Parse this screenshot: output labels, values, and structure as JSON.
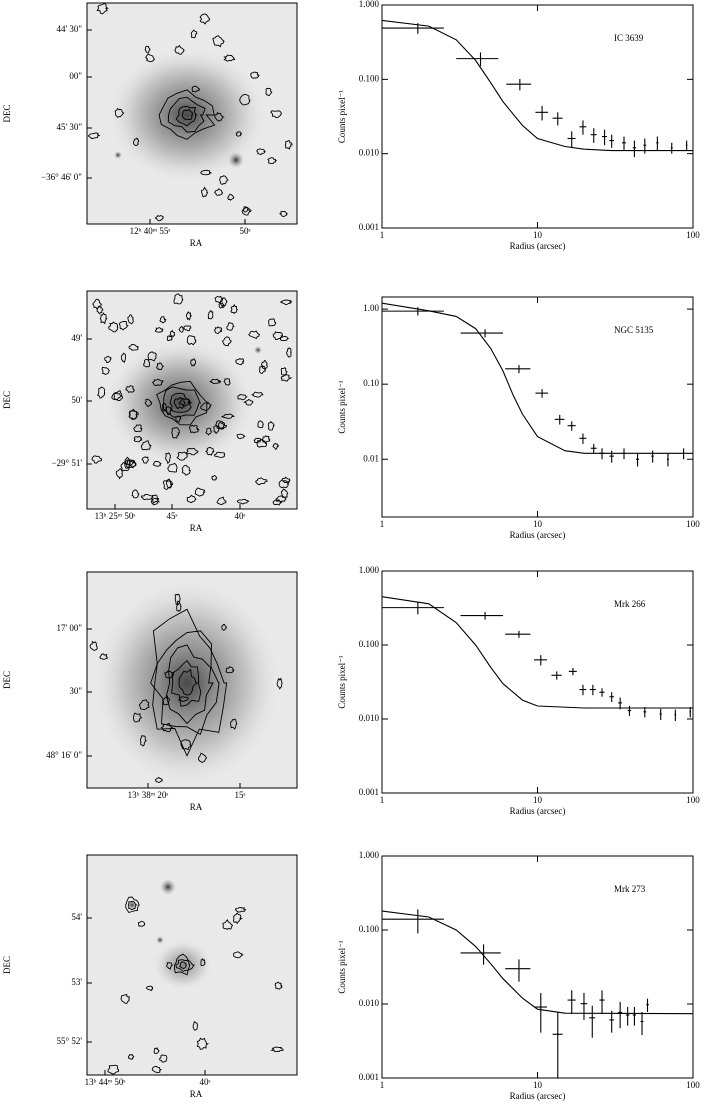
{
  "chart_data": [
    {
      "type": "scatter",
      "title": "IC 3639",
      "x_label": "Radius (arcsec)",
      "y_label": "Counts pixel⁻¹",
      "log_x": true,
      "log_y": true,
      "color": "#000000",
      "xlim": [
        1,
        100
      ],
      "ylim": [
        0.001,
        1
      ],
      "xticks": [
        1,
        10,
        100
      ],
      "yticks": [
        {
          "value": 1,
          "label": "1.000"
        },
        {
          "value": 0.1,
          "label": "0.100"
        },
        {
          "value": 0.01,
          "label": "0.010"
        },
        {
          "value": 0.001,
          "label": "0.001"
        }
      ],
      "x": [
        1.7,
        4.3,
        7.7,
        10.7,
        13.5,
        16.6,
        19.6,
        23,
        27,
        30,
        36,
        42,
        49,
        59,
        73,
        91
      ],
      "values": [
        0.49,
        0.19,
        0.086,
        0.036,
        0.03,
        0.016,
        0.023,
        0.018,
        0.017,
        0.015,
        0.014,
        0.012,
        0.013,
        0.014,
        0.012,
        0.013
      ],
      "xerr": [
        0.8,
        1.3,
        1.4,
        1,
        1,
        1,
        1,
        1,
        1,
        1,
        1,
        1,
        1,
        1,
        1,
        1
      ],
      "yerr": [
        0.08,
        0.04,
        0.015,
        0.008,
        0.006,
        0.004,
        0.005,
        0.004,
        0.004,
        0.003,
        0.003,
        0.003,
        0.003,
        0.003,
        0.002,
        0.002
      ],
      "model": {
        "x": [
          1,
          2,
          3,
          4,
          5,
          6,
          8,
          10,
          15,
          20,
          30,
          50,
          100
        ],
        "values": [
          0.62,
          0.52,
          0.34,
          0.18,
          0.09,
          0.05,
          0.024,
          0.016,
          0.0125,
          0.0115,
          0.011,
          0.011,
          0.011
        ]
      }
    },
    {
      "type": "scatter",
      "title": "NGC 5135",
      "x_label": "Radius (arcsec)",
      "y_label": "Counts pixel⁻¹",
      "log_x": true,
      "log_y": true,
      "color": "#000000",
      "xlim": [
        1,
        100
      ],
      "ylim": [
        0.0017,
        1.45
      ],
      "xticks": [
        1,
        10,
        100
      ],
      "yticks": [
        {
          "value": 1,
          "label": "1.00"
        },
        {
          "value": 0.1,
          "label": "0.10"
        },
        {
          "value": 0.01,
          "label": "0.01"
        }
      ],
      "x": [
        1.7,
        4.6,
        7.6,
        10.7,
        13.9,
        16.6,
        19.6,
        23,
        26,
        30,
        36,
        44,
        55,
        69,
        87
      ],
      "values": [
        0.94,
        0.48,
        0.16,
        0.076,
        0.034,
        0.028,
        0.019,
        0.014,
        0.012,
        0.011,
        0.012,
        0.01,
        0.011,
        0.01,
        0.012
      ],
      "xerr": [
        0.8,
        1.4,
        1.4,
        1,
        1,
        1,
        1,
        1,
        1,
        1,
        1,
        1,
        1,
        1,
        1
      ],
      "yerr": [
        0.12,
        0.06,
        0.02,
        0.01,
        0.005,
        0.004,
        0.003,
        0.002,
        0.002,
        0.002,
        0.002,
        0.002,
        0.002,
        0.002,
        0.002
      ],
      "model": {
        "x": [
          1,
          2,
          3,
          4,
          5,
          6,
          7,
          8,
          10,
          15,
          20,
          50,
          100
        ],
        "values": [
          1.2,
          0.95,
          0.8,
          0.55,
          0.3,
          0.15,
          0.07,
          0.04,
          0.02,
          0.013,
          0.012,
          0.012,
          0.012
        ]
      }
    },
    {
      "type": "scatter",
      "title": "Mrk 266",
      "x_label": "Radius (arcsec)",
      "y_label": "Counts pixel⁻¹",
      "log_x": true,
      "log_y": true,
      "color": "#000000",
      "xlim": [
        1,
        100
      ],
      "ylim": [
        0.001,
        1
      ],
      "xticks": [
        1,
        10,
        100
      ],
      "yticks": [
        {
          "value": 1,
          "label": "1.000"
        },
        {
          "value": 0.1,
          "label": "0.100"
        },
        {
          "value": 0.01,
          "label": "0.010"
        },
        {
          "value": 0.001,
          "label": "0.001"
        }
      ],
      "x": [
        1.7,
        4.6,
        7.6,
        10.5,
        13.3,
        16.9,
        19.6,
        22.7,
        26,
        30,
        34,
        39,
        49,
        62,
        77,
        96
      ],
      "values": [
        0.32,
        0.25,
        0.14,
        0.063,
        0.039,
        0.044,
        0.025,
        0.025,
        0.023,
        0.02,
        0.0165,
        0.013,
        0.0125,
        0.0117,
        0.0114,
        0.0125
      ],
      "xerr": [
        0.8,
        1.4,
        1.4,
        1,
        1,
        1,
        1,
        1,
        1,
        1,
        1,
        1,
        1,
        1,
        1,
        1
      ],
      "yerr": [
        0.06,
        0.03,
        0.015,
        0.01,
        0.005,
        0.005,
        0.004,
        0.004,
        0.003,
        0.003,
        0.003,
        0.002,
        0.002,
        0.002,
        0.002,
        0.002
      ],
      "model": {
        "x": [
          1,
          2,
          3,
          4,
          5,
          6,
          8,
          10,
          20,
          100
        ],
        "values": [
          0.45,
          0.36,
          0.2,
          0.1,
          0.05,
          0.03,
          0.018,
          0.015,
          0.0141,
          0.0141
        ]
      }
    },
    {
      "type": "scatter",
      "title": "Mrk 273",
      "x_label": "Radius (arcsec)",
      "y_label": "Counts pixel⁻¹",
      "log_x": true,
      "log_y": true,
      "color": "#000000",
      "xlim": [
        1,
        100
      ],
      "ylim": [
        0.001,
        1
      ],
      "xticks": [
        1,
        10,
        100
      ],
      "yticks": [
        {
          "value": 1,
          "label": "1.000"
        },
        {
          "value": 0.1,
          "label": "0.100"
        },
        {
          "value": 0.01,
          "label": "0.010"
        },
        {
          "value": 0.001,
          "label": "0.001"
        }
      ],
      "x": [
        1.7,
        4.5,
        7.6,
        10.5,
        13.5,
        16.6,
        19.9,
        22.5,
        26,
        30,
        34,
        38,
        42,
        47,
        51
      ],
      "values": [
        0.14,
        0.049,
        0.03,
        0.0091,
        0.0039,
        0.0113,
        0.0101,
        0.0065,
        0.0113,
        0.0061,
        0.0077,
        0.0071,
        0.0071,
        0.0058,
        0.0098
      ],
      "xerr": [
        0.8,
        1.3,
        1.4,
        1,
        1,
        1,
        1,
        1,
        1,
        1,
        1,
        1,
        1,
        1,
        1
      ],
      "yerr": [
        0.05,
        0.015,
        0.01,
        0.005,
        0.004,
        0.004,
        0.004,
        0.003,
        0.004,
        0.002,
        0.003,
        0.002,
        0.002,
        0.002,
        0.002
      ],
      "model": {
        "x": [
          1,
          2,
          3,
          4,
          5,
          6,
          8,
          10,
          15,
          100
        ],
        "values": [
          0.18,
          0.15,
          0.1,
          0.06,
          0.035,
          0.022,
          0.012,
          0.0085,
          0.0075,
          0.0074
        ]
      }
    }
  ],
  "image_panels": [
    {
      "x_label": "RA",
      "y_label": "DEC",
      "yticks": [
        "44' 30\"",
        "00\"",
        "45' 30\"",
        "−36° 46' 0\""
      ],
      "xticks": [
        "12ʰ 40ᵐ 55ˢ",
        "50ˢ"
      ]
    },
    {
      "x_label": "RA",
      "y_label": "DEC",
      "yticks": [
        "49'",
        "50'",
        "−29° 51'"
      ],
      "xticks": [
        "13ʰ 25ᵐ 50ˢ",
        "45ˢ",
        "40ˢ"
      ]
    },
    {
      "x_label": "RA",
      "y_label": "DEC",
      "yticks": [
        "17' 00\"",
        "30\"",
        "48° 16' 0\""
      ],
      "xticks": [
        "13ʰ 38ᵐ 20ˢ",
        "15ˢ"
      ]
    },
    {
      "x_label": "RA",
      "y_label": "DEC",
      "yticks": [
        "54'",
        "53'",
        "55° 52'"
      ],
      "xticks": [
        "13ʰ 44ᵐ 50ˢ",
        "40ˢ"
      ]
    }
  ]
}
